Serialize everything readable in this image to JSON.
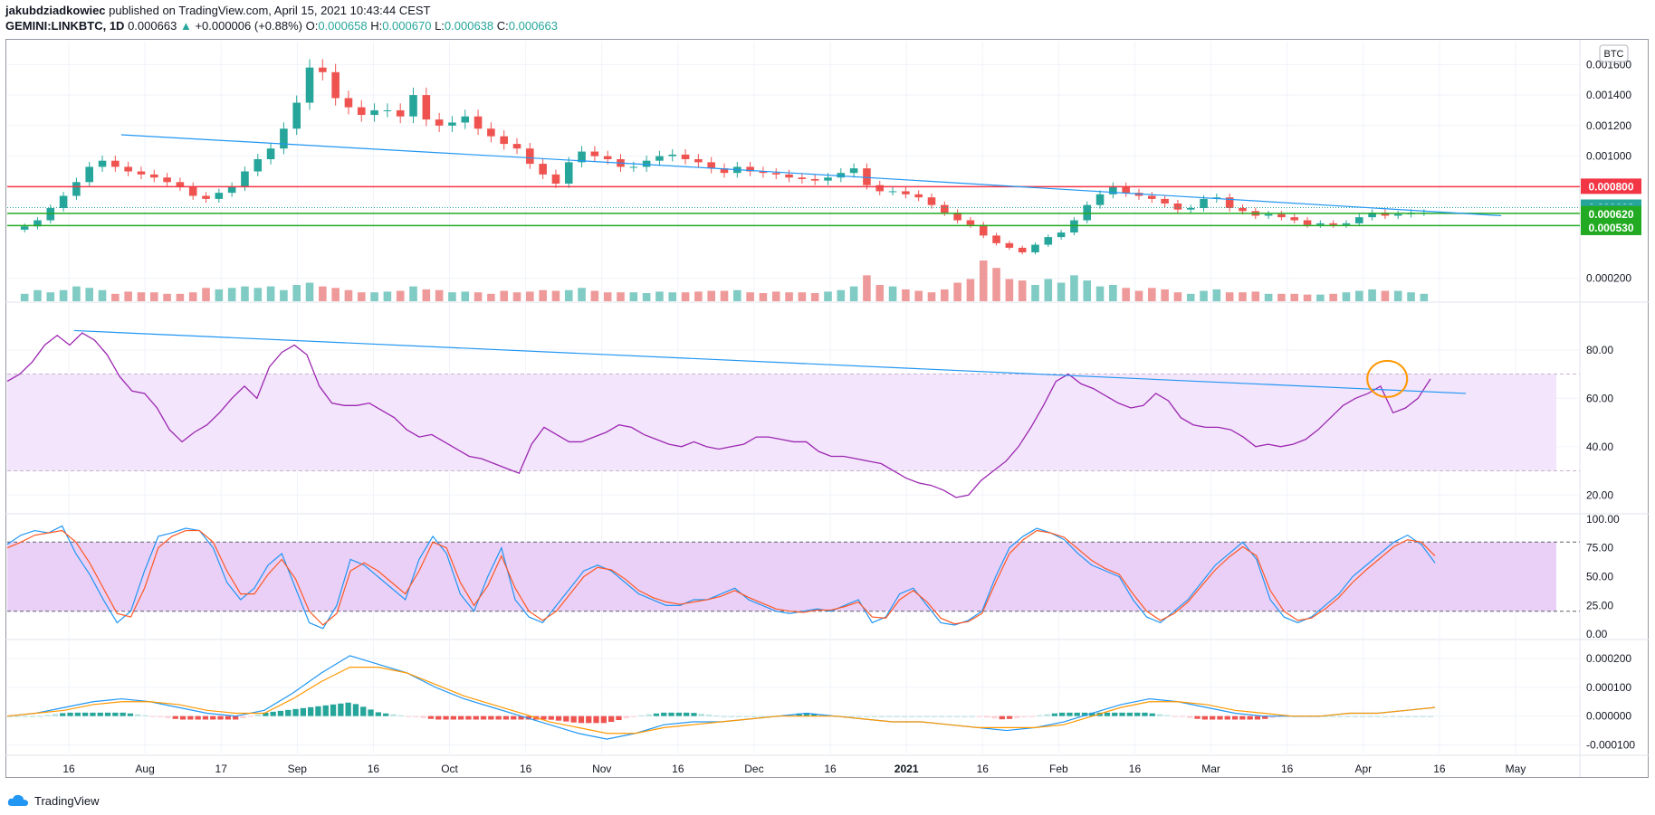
{
  "header": {
    "author": "jakubdziadkowiec",
    "published": "published on TradingView.com, April 15, 2021 10:43:44 CEST",
    "symbol": "GEMINI:LINKBTC, 1D",
    "last": "0.000663",
    "change": "+0.000006 (+0.88%)",
    "o_label": "O:",
    "o": "0.000658",
    "h_label": "H:",
    "h": "0.000670",
    "l_label": "L:",
    "l": "0.000638",
    "c_label": "C:",
    "c": "0.000663"
  },
  "footer": {
    "brand": "TradingView"
  },
  "colors": {
    "up": "#26a69a",
    "down": "#ef5350",
    "trend": "#2196f3",
    "rsi": "#9c27b0",
    "resistance": "#f23645",
    "support": "#22ab22",
    "highlight": "#ff9800"
  },
  "chart_data": [
    {
      "type": "candlestick",
      "panel": "price",
      "currency": "BTC",
      "ylim": [
        5e-05,
        0.00175
      ],
      "yticks": [
        {
          "v": 0.0002,
          "label": "0.000200"
        },
        {
          "v": 0.001,
          "label": "0.001000"
        },
        {
          "v": 0.0012,
          "label": "0.001200"
        },
        {
          "v": 0.0014,
          "label": "0.001400"
        },
        {
          "v": 0.0016,
          "label": "0.001600"
        }
      ],
      "xticks": [
        "16",
        "Aug",
        "17",
        "Sep",
        "16",
        "Oct",
        "16",
        "Nov",
        "16",
        "Dec",
        "16",
        "2021",
        "16",
        "Feb",
        "16",
        "Mar",
        "16",
        "Apr",
        "16",
        "May"
      ],
      "price_tags": [
        {
          "label": "0.000800",
          "value": 0.0008,
          "color": "#f23645"
        },
        {
          "label": "0.000663",
          "value": 0.000663,
          "color": "#26a69a"
        },
        {
          "label": "15:16:19",
          "value": 0.000633,
          "color": "#26a69a"
        },
        {
          "label": "0.000620",
          "value": 0.00062,
          "color": "#22ab22"
        },
        {
          "label": "0.000530",
          "value": 0.00053,
          "color": "#22ab22"
        }
      ],
      "levels": [
        {
          "value": 0.0008,
          "color": "#f23645"
        },
        {
          "value": 0.000625,
          "color": "#22ab22"
        },
        {
          "value": 0.000545,
          "color": "#22ab22"
        }
      ],
      "trendline": [
        [
          0.0725,
          0.00114
        ],
        [
          0.45,
          0.00092
        ],
        [
          0.95,
          0.00061
        ]
      ],
      "closes": [
        0.00054,
        0.00058,
        0.00066,
        0.00074,
        0.00083,
        0.00093,
        0.00097,
        0.00093,
        0.0009,
        0.00088,
        0.00086,
        0.00083,
        0.0008,
        0.00074,
        0.00072,
        0.00076,
        0.0008,
        0.0009,
        0.00098,
        0.00105,
        0.00118,
        0.00135,
        0.00158,
        0.00155,
        0.00138,
        0.00132,
        0.00127,
        0.0013,
        0.0013,
        0.00126,
        0.0014,
        0.00124,
        0.0012,
        0.00122,
        0.00126,
        0.00118,
        0.00113,
        0.00108,
        0.00105,
        0.00095,
        0.00088,
        0.00082,
        0.00096,
        0.00103,
        0.001,
        0.00098,
        0.00093,
        0.00093,
        0.00097,
        0.001,
        0.00101,
        0.00098,
        0.00096,
        0.00092,
        0.00089,
        0.00093,
        0.0009,
        0.00089,
        0.00088,
        0.00086,
        0.00085,
        0.00084,
        0.00086,
        0.00089,
        0.00092,
        0.00081,
        0.00077,
        0.00077,
        0.00075,
        0.00073,
        0.00068,
        0.00063,
        0.00058,
        0.00055,
        0.00048,
        0.00043,
        0.0004,
        0.00037,
        0.00042,
        0.00047,
        0.0005,
        0.00058,
        0.00068,
        0.00075,
        0.0008,
        0.00076,
        0.00074,
        0.00072,
        0.00069,
        0.00065,
        0.00066,
        0.00072,
        0.00073,
        0.00066,
        0.00064,
        0.00061,
        0.00062,
        0.0006,
        0.00058,
        0.00055,
        0.00056,
        0.00055,
        0.00056,
        0.0006,
        0.00063,
        0.00061,
        0.00062,
        0.00063,
        0.00063
      ],
      "volume_ylim": [
        0,
        0.00011
      ],
      "volumes": [
        1e-05,
        1.5e-05,
        1.2e-05,
        1.5e-05,
        2e-05,
        1.8e-05,
        1.5e-05,
        1e-05,
        1.3e-05,
        1.2e-05,
        1.2e-05,
        1e-05,
        1e-05,
        1.2e-05,
        1.8e-05,
        1.6e-05,
        1.8e-05,
        2e-05,
        1.8e-05,
        2e-05,
        1.5e-05,
        2.2e-05,
        2.5e-05,
        2e-05,
        1.8e-05,
        1.5e-05,
        1.2e-05,
        1.2e-05,
        1.3e-05,
        1.4e-05,
        2e-05,
        1.6e-05,
        1.5e-05,
        1.2e-05,
        1.3e-05,
        1.2e-05,
        1e-05,
        1.4e-05,
        1.2e-05,
        1.3e-05,
        1.5e-05,
        1.4e-05,
        1.5e-05,
        1.8e-05,
        1.4e-05,
        1.2e-05,
        1.2e-05,
        1.2e-05,
        1.1e-05,
        1.3e-05,
        1.2e-05,
        1.2e-05,
        1.3e-05,
        1.4e-05,
        1.4e-05,
        1.5e-05,
        1.2e-05,
        1.1e-05,
        1.3e-05,
        1.2e-05,
        1.2e-05,
        1.1e-05,
        1.3e-05,
        1.5e-05,
        2e-05,
        3.5e-05,
        2.2e-05,
        2e-05,
        1.6e-05,
        1.4e-05,
        1.2e-05,
        1.6e-05,
        2.5e-05,
        3e-05,
        5.5e-05,
        4.5e-05,
        3e-05,
        2.8e-05,
        2.2e-05,
        3e-05,
        2.5e-05,
        3.5e-05,
        2.8e-05,
        2e-05,
        2.2e-05,
        1.8e-05,
        1.4e-05,
        1.8e-05,
        1.6e-05,
        1.2e-05,
        1e-05,
        1.4e-05,
        1.6e-05,
        1.2e-05,
        1.2e-05,
        1.3e-05,
        1e-05,
        1e-05,
        1e-05,
        9e-06,
        9e-06,
        1e-05,
        1.2e-05,
        1.4e-05,
        1.6e-05,
        1.4e-05,
        1.4e-05,
        1.2e-05,
        1e-05
      ]
    },
    {
      "type": "line",
      "panel": "rsi",
      "ylim": [
        13,
        99
      ],
      "yticks": [
        20,
        40,
        60,
        80
      ],
      "ytick_labels": [
        "20.00",
        "40.00",
        "60.00",
        "80.00"
      ],
      "band": [
        30,
        70
      ],
      "trendline": [
        [
          0.0425,
          88
        ],
        [
          0.9275,
          62
        ]
      ],
      "highlight": {
        "x": 0.8775,
        "y": 68
      },
      "values": [
        67,
        70,
        75,
        82,
        86,
        82,
        87,
        84,
        78,
        69,
        63,
        62,
        56,
        47,
        42,
        46,
        49,
        54,
        60,
        65,
        60,
        73,
        79,
        82,
        78,
        65,
        58,
        57,
        57,
        58,
        55,
        52,
        47,
        44,
        45,
        42,
        39,
        36,
        35,
        33,
        31,
        29,
        41,
        48,
        45,
        42,
        42,
        44,
        46,
        49,
        48,
        45,
        43,
        41,
        40,
        42,
        40,
        39,
        40,
        41,
        44,
        44,
        43,
        42,
        42,
        38,
        36,
        36,
        35,
        34,
        33,
        30,
        27,
        25,
        24,
        22,
        19,
        20,
        26,
        30,
        34,
        40,
        48,
        57,
        67,
        70,
        66,
        64,
        61,
        58,
        56,
        57,
        62,
        59,
        52,
        49,
        48,
        48,
        47,
        44,
        40,
        41,
        40,
        41,
        43,
        47,
        52,
        57,
        60,
        62,
        65,
        54,
        56,
        60,
        68
      ]
    },
    {
      "type": "line",
      "panel": "stochastic_rsi",
      "ylim": [
        -3,
        103
      ],
      "yticks": [
        0,
        25,
        50,
        75,
        100
      ],
      "ytick_labels": [
        "0.00",
        "25.00",
        "50.00",
        "75.00",
        "100.00"
      ],
      "band": [
        20,
        80
      ],
      "series": [
        {
          "color": "#2196f3",
          "values": [
            78,
            86,
            90,
            88,
            94,
            70,
            52,
            30,
            10,
            20,
            55,
            85,
            88,
            92,
            90,
            75,
            45,
            30,
            40,
            60,
            70,
            40,
            10,
            5,
            25,
            65,
            60,
            50,
            40,
            30,
            65,
            85,
            70,
            35,
            20,
            50,
            75,
            30,
            15,
            10,
            25,
            40,
            55,
            60,
            55,
            45,
            35,
            30,
            25,
            25,
            30,
            30,
            35,
            40,
            30,
            25,
            20,
            18,
            20,
            22,
            20,
            25,
            30,
            10,
            15,
            35,
            40,
            25,
            10,
            8,
            12,
            20,
            50,
            75,
            85,
            92,
            88,
            82,
            70,
            60,
            55,
            50,
            30,
            15,
            10,
            20,
            30,
            45,
            60,
            70,
            80,
            65,
            30,
            15,
            10,
            15,
            25,
            35,
            50,
            60,
            70,
            80,
            86,
            78,
            62
          ]
        },
        {
          "color": "#ff5722",
          "values": [
            75,
            80,
            86,
            88,
            90,
            80,
            62,
            40,
            18,
            15,
            40,
            75,
            85,
            90,
            90,
            80,
            55,
            35,
            35,
            52,
            65,
            48,
            20,
            8,
            18,
            55,
            62,
            55,
            45,
            35,
            55,
            80,
            75,
            45,
            25,
            42,
            68,
            40,
            20,
            12,
            20,
            35,
            50,
            58,
            56,
            48,
            38,
            32,
            28,
            26,
            28,
            30,
            33,
            38,
            32,
            27,
            22,
            20,
            19,
            21,
            21,
            24,
            28,
            15,
            14,
            30,
            38,
            28,
            14,
            9,
            11,
            18,
            45,
            70,
            82,
            90,
            88,
            84,
            74,
            64,
            57,
            52,
            35,
            20,
            12,
            18,
            28,
            42,
            56,
            67,
            76,
            68,
            38,
            20,
            12,
            14,
            22,
            32,
            45,
            56,
            66,
            76,
            82,
            80,
            68
          ]
        }
      ]
    },
    {
      "type": "line",
      "panel": "macd",
      "ylim": [
        -0.00013,
        0.00026
      ],
      "yticks": [
        -0.0001,
        0,
        0.0001,
        0.0002
      ],
      "ytick_labels": [
        "-0.000100",
        "0.000000",
        "0.000100",
        "0.000200"
      ],
      "series": [
        {
          "color": "#2196f3",
          "values": [
            0,
            1e-05,
            3e-05,
            5e-05,
            6e-05,
            5e-05,
            3e-05,
            1e-05,
            0,
            2e-05,
            8e-05,
            0.00015,
            0.00021,
            0.00018,
            0.00015,
            0.0001,
            6e-05,
            3e-05,
            0,
            -3e-05,
            -6e-05,
            -8e-05,
            -6e-05,
            -3e-05,
            -2e-05,
            -2e-05,
            -1e-05,
            0,
            1e-05,
            0,
            -1e-05,
            -2e-05,
            -2e-05,
            -3e-05,
            -4e-05,
            -5e-05,
            -4e-05,
            -2e-05,
            1e-05,
            4e-05,
            6e-05,
            5e-05,
            3e-05,
            1e-05,
            0,
            0,
            0,
            1e-05,
            1e-05,
            2e-05,
            3e-05
          ]
        },
        {
          "color": "#ff9800",
          "values": [
            0,
            1e-05,
            2e-05,
            4e-05,
            5e-05,
            5e-05,
            4e-05,
            2e-05,
            1e-05,
            1e-05,
            6e-05,
            0.00012,
            0.00017,
            0.00017,
            0.00015,
            0.00011,
            7e-05,
            4e-05,
            1e-05,
            -2e-05,
            -4e-05,
            -6e-05,
            -6e-05,
            -4e-05,
            -3e-05,
            -2e-05,
            -1e-05,
            0,
            0,
            0,
            -1e-05,
            -2e-05,
            -2e-05,
            -3e-05,
            -4e-05,
            -4e-05,
            -4e-05,
            -3e-05,
            0,
            3e-05,
            5e-05,
            5e-05,
            4e-05,
            2e-05,
            1e-05,
            0,
            0,
            1e-05,
            1e-05,
            2e-05,
            3e-05
          ]
        }
      ]
    }
  ]
}
